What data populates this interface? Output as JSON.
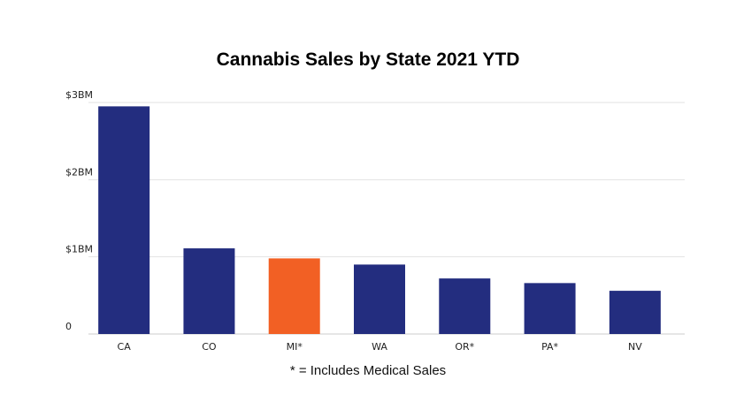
{
  "chart_data": {
    "type": "bar",
    "title": "Cannabis Sales by State 2021 YTD",
    "footnote": "* = Includes Medical Sales",
    "categories": [
      "CA",
      "CO",
      "MI*",
      "WA",
      "OR*",
      "PA*",
      "NV"
    ],
    "values": [
      2.95,
      1.11,
      0.98,
      0.9,
      0.72,
      0.66,
      0.56
    ],
    "yticks": [
      {
        "value": 0,
        "label": "0"
      },
      {
        "value": 1,
        "label": "$1BM"
      },
      {
        "value": 2,
        "label": "$2BM"
      },
      {
        "value": 3,
        "label": "$3BM"
      }
    ],
    "ylim": [
      0,
      3
    ],
    "xlabel": "",
    "ylabel": "",
    "grid": true,
    "legend": "none",
    "colors": {
      "default": "#232d7f",
      "highlight": "#f26024",
      "highlight_category": "MI*",
      "grid": "#e2e2e2",
      "axis": "#cccccc"
    }
  }
}
